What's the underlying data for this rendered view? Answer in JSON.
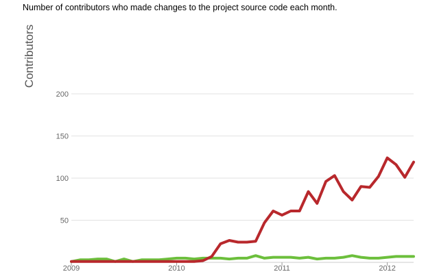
{
  "caption": "Number of contributors who made changes to the project source code each month.",
  "chart_data": {
    "type": "line",
    "title": "",
    "ylabel": "Contributors",
    "xlabel": "",
    "ylim": [
      0,
      200
    ],
    "yticks": [
      50,
      100,
      150,
      200
    ],
    "xticks": [
      "2009",
      "2010",
      "2011",
      "2012"
    ],
    "x_range": [
      "2009-01",
      "2012-04"
    ],
    "grid": true,
    "x": [
      "2009-01",
      "2009-02",
      "2009-03",
      "2009-04",
      "2009-05",
      "2009-06",
      "2009-07",
      "2009-08",
      "2009-09",
      "2009-10",
      "2009-11",
      "2009-12",
      "2010-01",
      "2010-02",
      "2010-03",
      "2010-04",
      "2010-05",
      "2010-06",
      "2010-07",
      "2010-08",
      "2010-09",
      "2010-10",
      "2010-11",
      "2010-12",
      "2011-01",
      "2011-02",
      "2011-03",
      "2011-04",
      "2011-05",
      "2011-06",
      "2011-07",
      "2011-08",
      "2011-09",
      "2011-10",
      "2011-11",
      "2011-12",
      "2012-01",
      "2012-02",
      "2012-03",
      "2012-04"
    ],
    "series": [
      {
        "color": "#b8282c",
        "values": [
          1,
          1,
          1,
          1,
          1,
          1,
          1,
          1,
          1,
          1,
          1,
          1,
          1,
          1,
          1,
          2,
          7,
          22,
          26,
          24,
          24,
          25,
          47,
          61,
          56,
          61,
          61,
          84,
          70,
          96,
          103,
          84,
          74,
          90,
          89,
          102,
          124,
          116,
          101,
          119
        ]
      },
      {
        "color": "#6cbf3c",
        "values": [
          1,
          3,
          3,
          4,
          4,
          1,
          4,
          1,
          3,
          3,
          3,
          4,
          5,
          5,
          4,
          5,
          5,
          5,
          4,
          5,
          5,
          8,
          5,
          6,
          6,
          6,
          5,
          6,
          4,
          5,
          5,
          6,
          8,
          6,
          5,
          5,
          6,
          7,
          7,
          7
        ]
      }
    ]
  }
}
